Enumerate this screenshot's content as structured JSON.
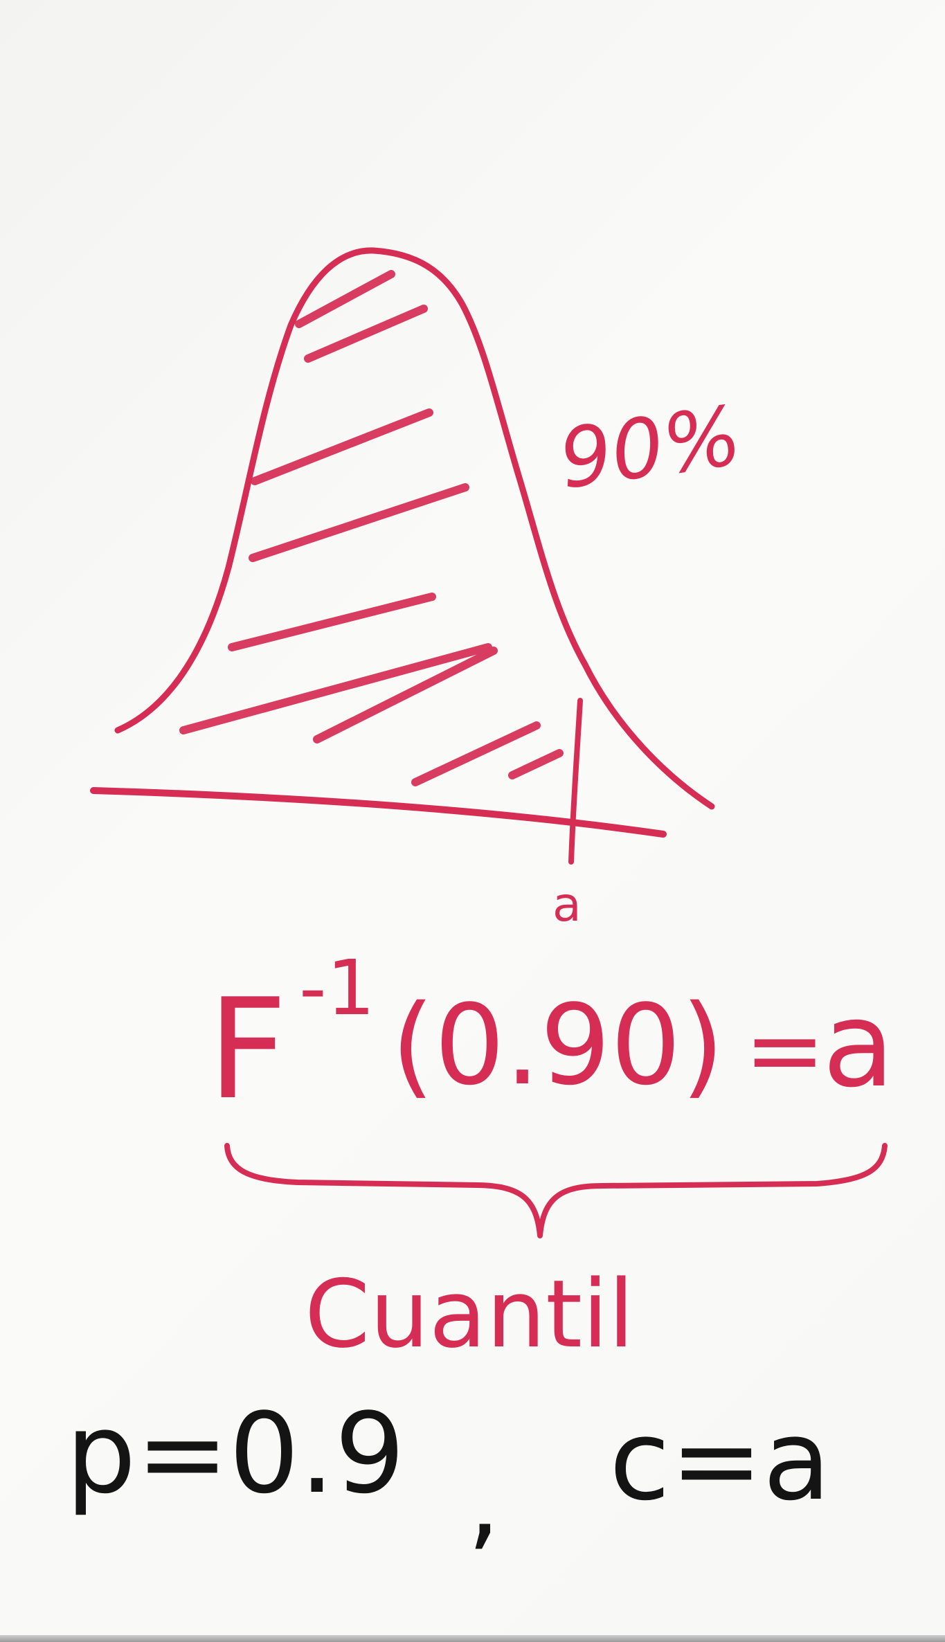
{
  "colors": {
    "board": "#f7f7f5",
    "marker_red": "#d62d55",
    "marker_black": "#141414"
  },
  "diagram": {
    "percent_label": "90%",
    "point_label": "a",
    "quantile_equation": {
      "function": "F",
      "exponent": "-1",
      "argument": "(0.90)",
      "equals": "=",
      "result": "a"
    },
    "brace_caption": "Cuantil",
    "summary": {
      "p_part": "p=0.9",
      "separator": ",",
      "c_part": "c=a"
    }
  }
}
